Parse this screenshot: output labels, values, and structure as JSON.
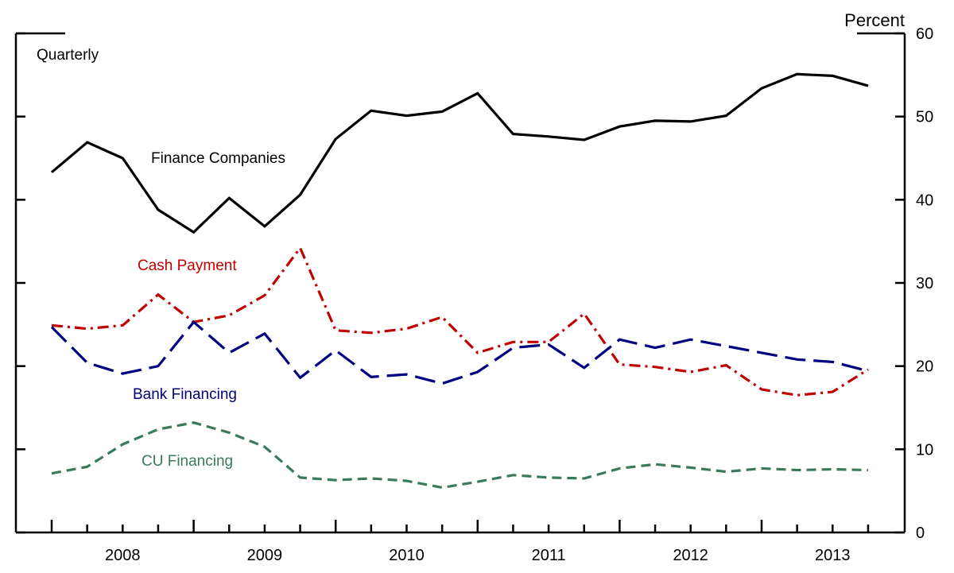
{
  "chart_data": {
    "type": "line",
    "frequency_label": "Quarterly",
    "unit_label": "Percent",
    "x_years": [
      "2008",
      "2009",
      "2010",
      "2011",
      "2012",
      "2013"
    ],
    "x": [
      "2008 Q1",
      "2008 Q2",
      "2008 Q3",
      "2008 Q4",
      "2009 Q1",
      "2009 Q2",
      "2009 Q3",
      "2009 Q4",
      "2010 Q1",
      "2010 Q2",
      "2010 Q3",
      "2010 Q4",
      "2011 Q1",
      "2011 Q2",
      "2011 Q3",
      "2011 Q4",
      "2012 Q1",
      "2012 Q2",
      "2012 Q3",
      "2012 Q4",
      "2013 Q1",
      "2013 Q2",
      "2013 Q3",
      "2013 Q4"
    ],
    "ylim": [
      0,
      60
    ],
    "yticks": [
      0,
      10,
      20,
      30,
      40,
      50,
      60
    ],
    "y_axis_side": "right",
    "grid": false,
    "legend": "inline labels",
    "series": [
      {
        "name": "Finance Companies",
        "color": "#000000",
        "dash": "solid",
        "values": [
          43.3,
          46.9,
          45.0,
          38.8,
          36.1,
          40.2,
          36.8,
          40.6,
          47.3,
          50.7,
          50.1,
          50.6,
          52.8,
          47.9,
          47.6,
          47.2,
          48.8,
          49.5,
          49.4,
          50.1,
          53.4,
          55.1,
          54.9,
          53.7
        ]
      },
      {
        "name": "Cash Payment",
        "color": "#c00000",
        "dash": "dashdot",
        "values": [
          24.9,
          24.5,
          24.9,
          28.6,
          25.3,
          26.1,
          28.5,
          34.2,
          24.3,
          24.0,
          24.5,
          25.9,
          21.6,
          22.9,
          22.9,
          26.3,
          20.2,
          19.9,
          19.3,
          20.1,
          17.2,
          16.5,
          16.9,
          19.6
        ]
      },
      {
        "name": "Bank Financing",
        "color": "#000080",
        "dash": "longdash",
        "values": [
          24.7,
          20.4,
          19.1,
          20.0,
          25.3,
          21.6,
          23.9,
          18.6,
          21.9,
          18.7,
          19.0,
          17.9,
          19.3,
          22.2,
          22.6,
          19.8,
          23.2,
          22.2,
          23.2,
          22.4,
          21.6,
          20.8,
          20.5,
          19.4
        ]
      },
      {
        "name": "CU Financing",
        "color": "#3a7a5a",
        "dash": "shortdash",
        "values": [
          7.1,
          7.9,
          10.6,
          12.4,
          13.2,
          12.0,
          10.3,
          6.6,
          6.3,
          6.5,
          6.2,
          5.4,
          6.1,
          6.9,
          6.6,
          6.5,
          7.7,
          8.2,
          7.8,
          7.3,
          7.7,
          7.5,
          7.6,
          7.5
        ]
      }
    ]
  }
}
